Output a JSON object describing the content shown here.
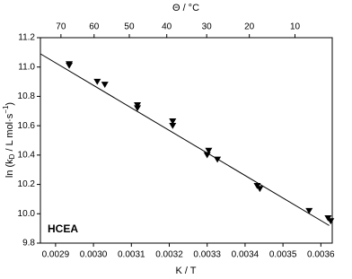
{
  "chart_data": {
    "type": "scatter",
    "xlabel": "K / T",
    "top_axis": {
      "label": "Θ / °C",
      "ticks": [
        70,
        60,
        50,
        40,
        30,
        20,
        10
      ]
    },
    "ylabel_parts": [
      "ln (k",
      "D",
      " / L mol·s",
      "−1",
      ")"
    ],
    "annotation": "HCEA",
    "xlim": [
      0.00286,
      0.00363
    ],
    "ylim": [
      9.8,
      11.2
    ],
    "xticks": [
      0.0029,
      {
        "value": 0.003,
        "label": "0.0030"
      },
      0.0031,
      0.0032,
      0.0033,
      0.0034,
      0.0035,
      0.0036
    ],
    "yticks": [
      9.8,
      {
        "value": 10,
        "label": "10.0"
      },
      10.2,
      10.4,
      10.6,
      10.8,
      {
        "value": 11,
        "label": "11.0"
      },
      11.2
    ],
    "series": [
      {
        "color": "#000000",
        "marker": "down-triangle",
        "x": [
          0.002936,
          0.002936,
          0.00301,
          0.00303,
          0.003116,
          0.003116,
          0.003209,
          0.003209,
          0.003304,
          0.0033,
          0.003327,
          0.003432,
          0.003439,
          0.003569,
          0.003619,
          0.003626
        ],
        "values": [
          11.02,
          11.01,
          10.9,
          10.88,
          10.74,
          10.72,
          10.63,
          10.6,
          10.43,
          10.4,
          10.37,
          10.19,
          10.17,
          10.02,
          9.97,
          9.95
        ]
      }
    ],
    "fit": {
      "color": "#000000",
      "x": [
        0.00286,
        0.003622
      ],
      "values": [
        11.09,
        9.92
      ]
    }
  }
}
